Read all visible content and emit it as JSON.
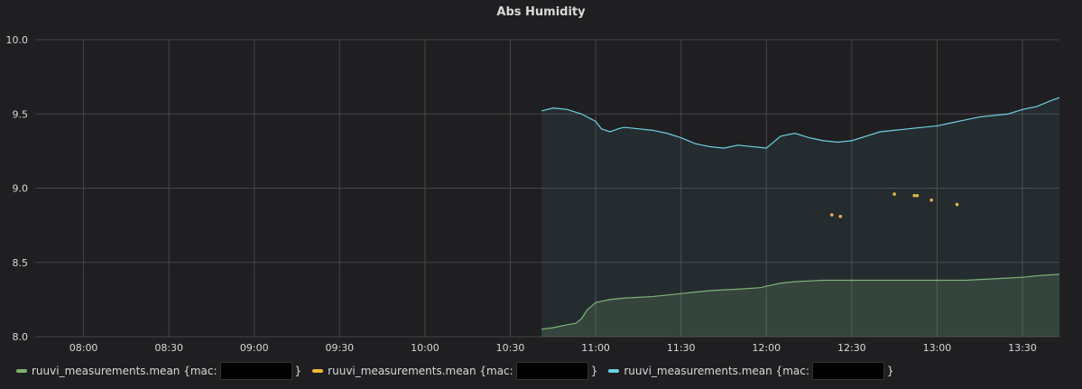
{
  "chart_data": {
    "type": "line",
    "title": "Abs Humidity",
    "xlabel": "",
    "ylabel": "",
    "ylim": [
      8.0,
      10.0
    ],
    "yticks": [
      "8.0",
      "8.5",
      "9.0",
      "9.5",
      "10.0"
    ],
    "xlim": [
      "07:43",
      "13:43"
    ],
    "xticks": [
      "08:00",
      "08:30",
      "09:00",
      "09:30",
      "10:00",
      "10:30",
      "11:00",
      "11:30",
      "12:00",
      "12:30",
      "13:00",
      "13:30"
    ],
    "grid": true,
    "legend_position": "bottom-left",
    "series": [
      {
        "name": "ruuvi_measurements.mean {mac:",
        "color": "#7eb26d",
        "style": "area",
        "x": [
          "10:41",
          "10:45",
          "10:50",
          "10:53",
          "10:55",
          "10:57",
          "11:00",
          "11:05",
          "11:10",
          "11:20",
          "11:30",
          "11:40",
          "11:50",
          "11:58",
          "12:00",
          "12:05",
          "12:10",
          "12:20",
          "12:30",
          "12:40",
          "12:50",
          "13:00",
          "13:10",
          "13:20",
          "13:30",
          "13:35",
          "13:43"
        ],
        "values": [
          8.05,
          8.06,
          8.08,
          8.09,
          8.12,
          8.18,
          8.23,
          8.25,
          8.26,
          8.27,
          8.29,
          8.31,
          8.32,
          8.33,
          8.34,
          8.36,
          8.37,
          8.38,
          8.38,
          8.38,
          8.38,
          8.38,
          8.38,
          8.39,
          8.4,
          8.41,
          8.42
        ]
      },
      {
        "name": "ruuvi_measurements.mean {mac:",
        "color": "#eab839",
        "style": "points",
        "x": [
          "12:23",
          "12:26",
          "12:45",
          "12:52",
          "12:53",
          "12:58",
          "13:07"
        ],
        "values": [
          8.82,
          8.81,
          8.96,
          8.95,
          8.95,
          8.92,
          8.89
        ]
      },
      {
        "name": "ruuvi_measurements.mean {mac:",
        "color": "#6ed0e0",
        "style": "area",
        "x": [
          "10:41",
          "10:45",
          "10:50",
          "10:55",
          "11:00",
          "11:02",
          "11:05",
          "11:08",
          "11:10",
          "11:15",
          "11:20",
          "11:25",
          "11:30",
          "11:35",
          "11:40",
          "11:45",
          "11:50",
          "11:55",
          "12:00",
          "12:05",
          "12:10",
          "12:15",
          "12:20",
          "12:25",
          "12:30",
          "12:35",
          "12:40",
          "12:45",
          "12:50",
          "12:55",
          "13:00",
          "13:05",
          "13:10",
          "13:15",
          "13:20",
          "13:25",
          "13:30",
          "13:35",
          "13:40",
          "13:43"
        ],
        "values": [
          9.52,
          9.54,
          9.53,
          9.5,
          9.45,
          9.4,
          9.38,
          9.4,
          9.41,
          9.4,
          9.39,
          9.37,
          9.34,
          9.3,
          9.28,
          9.27,
          9.29,
          9.28,
          9.27,
          9.35,
          9.37,
          9.34,
          9.32,
          9.31,
          9.32,
          9.35,
          9.38,
          9.39,
          9.4,
          9.41,
          9.42,
          9.44,
          9.46,
          9.48,
          9.49,
          9.5,
          9.53,
          9.55,
          9.59,
          9.61
        ]
      }
    ]
  }
}
